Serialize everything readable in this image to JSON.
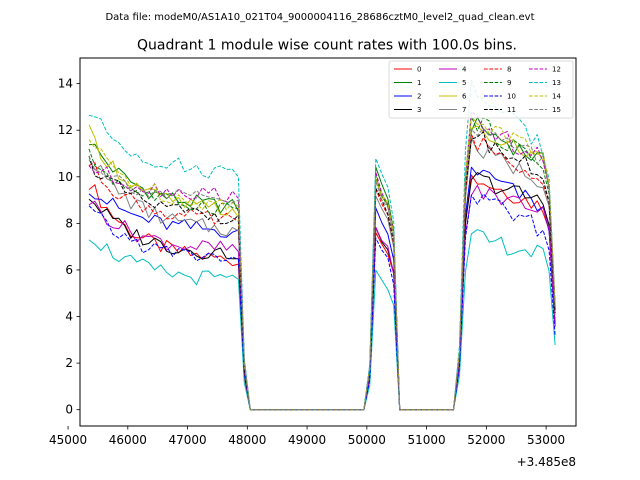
{
  "chart_data": {
    "type": "line",
    "suptitle": "Data file: modeM0/AS1A10_021T04_9000004116_28686cztM0_level2_quad_clean.evt",
    "title": "Quadrant 1 module wise count rates with 100.0s bins.",
    "xlabel": "",
    "ylabel": "",
    "x_offset_label": "+3.485e8",
    "xlim": [
      45200,
      53500
    ],
    "ylim": [
      -0.7,
      15.1
    ],
    "x_ticks": [
      45000,
      46000,
      47000,
      48000,
      49000,
      50000,
      51000,
      52000,
      53000
    ],
    "x_tick_labels": [
      "45000",
      "46000",
      "47000",
      "48000",
      "49000",
      "50000",
      "51000",
      "52000",
      "53000"
    ],
    "y_ticks": [
      0,
      2,
      4,
      6,
      8,
      10,
      12,
      14
    ],
    "y_tick_labels": [
      "0",
      "2",
      "4",
      "6",
      "8",
      "10",
      "12",
      "14"
    ],
    "segments": [
      {
        "x_start": 45350,
        "x_end": 47750,
        "step": 100,
        "shape": "decay"
      },
      {
        "x_start": 47850,
        "x_end": 48050,
        "step": 100,
        "shape": "drop"
      },
      {
        "x_start": 48050,
        "x_end": 49950,
        "step": 100,
        "shape": "zero"
      },
      {
        "x_start": 50050,
        "x_end": 50550,
        "step": 100,
        "shape": "bump"
      },
      {
        "x_start": 50550,
        "x_end": 51450,
        "step": 100,
        "shape": "zero"
      },
      {
        "x_start": 51550,
        "x_end": 53150,
        "step": 100,
        "shape": "burst"
      }
    ],
    "series": [
      {
        "name": "0",
        "color": "#ff0000",
        "dashed": false,
        "start": 9.8,
        "plateau": 6.3,
        "bump": 7.7,
        "burst_peak": 10.0,
        "burst_end": 8.6
      },
      {
        "name": "1",
        "color": "#008000",
        "dashed": false,
        "start": 11.6,
        "plateau": 8.6,
        "bump": 10.3,
        "burst_peak": 12.3,
        "burst_end": 10.5
      },
      {
        "name": "2",
        "color": "#0000ff",
        "dashed": false,
        "start": 9.6,
        "plateau": 7.6,
        "bump": 8.6,
        "burst_peak": 10.4,
        "burst_end": 8.5
      },
      {
        "name": "3",
        "color": "#000000",
        "dashed": false,
        "start": 9.2,
        "plateau": 6.6,
        "bump": 7.8,
        "burst_peak": 10.0,
        "burst_end": 8.8
      },
      {
        "name": "4",
        "color": "#bf00bf",
        "dashed": false,
        "start": 9.0,
        "plateau": 6.8,
        "bump": 7.9,
        "burst_peak": 9.4,
        "burst_end": 8.6
      },
      {
        "name": "5",
        "color": "#00bfbf",
        "dashed": false,
        "start": 7.6,
        "plateau": 5.5,
        "bump": 5.9,
        "burst_peak": 7.4,
        "burst_end": 6.6
      },
      {
        "name": "6",
        "color": "#bfbf00",
        "dashed": false,
        "start": 11.9,
        "plateau": 8.4,
        "bump": 9.9,
        "burst_peak": 12.1,
        "burst_end": 10.6
      },
      {
        "name": "7",
        "color": "#808080",
        "dashed": false,
        "start": 11.0,
        "plateau": 7.6,
        "bump": 9.2,
        "burst_peak": 11.3,
        "burst_end": 9.7
      },
      {
        "name": "8",
        "color": "#ff0000",
        "dashed": true,
        "start": 10.6,
        "plateau": 8.0,
        "bump": 9.4,
        "burst_peak": 11.6,
        "burst_end": 9.9
      },
      {
        "name": "9",
        "color": "#008000",
        "dashed": true,
        "start": 10.9,
        "plateau": 8.6,
        "bump": 10.0,
        "burst_peak": 12.5,
        "burst_end": 10.3
      },
      {
        "name": "10",
        "color": "#0000ff",
        "dashed": true,
        "start": 8.6,
        "plateau": 6.4,
        "bump": 7.3,
        "burst_peak": 9.2,
        "burst_end": 7.6
      },
      {
        "name": "11",
        "color": "#000000",
        "dashed": true,
        "start": 10.7,
        "plateau": 8.2,
        "bump": 9.6,
        "burst_peak": 11.9,
        "burst_end": 9.9
      },
      {
        "name": "12",
        "color": "#bf00bf",
        "dashed": true,
        "start": 10.5,
        "plateau": 9.2,
        "bump": 10.1,
        "burst_peak": 12.4,
        "burst_end": 10.6
      },
      {
        "name": "13",
        "color": "#00bfbf",
        "dashed": true,
        "start": 12.8,
        "plateau": 10.1,
        "bump": 10.9,
        "burst_peak": 13.9,
        "burst_end": 11.0
      },
      {
        "name": "14",
        "color": "#bfbf00",
        "dashed": true,
        "start": 11.6,
        "plateau": 8.7,
        "bump": 10.0,
        "burst_peak": 12.6,
        "burst_end": 10.8
      },
      {
        "name": "15",
        "color": "#808080",
        "dashed": true,
        "start": 10.8,
        "plateau": 8.9,
        "bump": 9.8,
        "burst_peak": 12.2,
        "burst_end": 10.6
      }
    ]
  }
}
